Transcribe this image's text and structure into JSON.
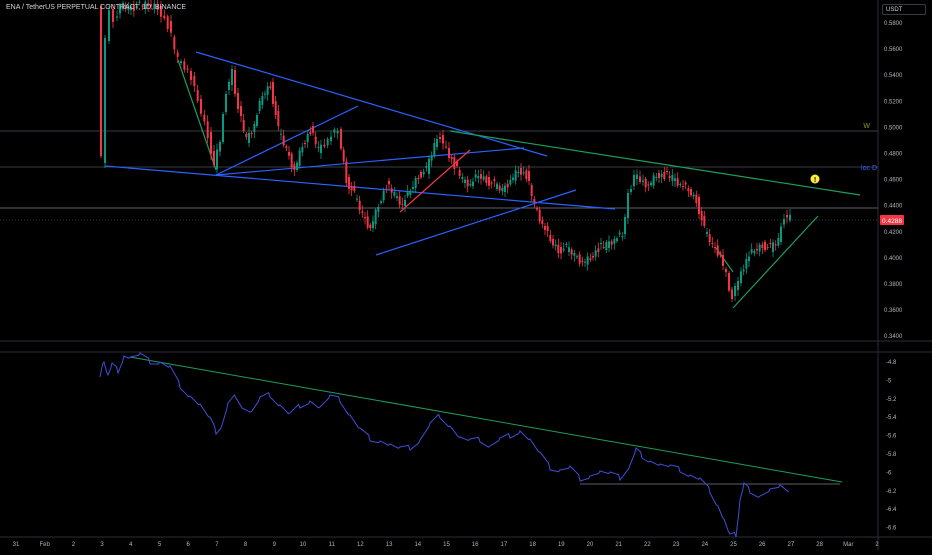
{
  "header": {
    "symbol_title": "ENA / TetherUS PERPETUAL CONTRACT, 1D, BINANCE",
    "currency_button": "USDT"
  },
  "price_axis": {
    "ticks": [
      "0.5800",
      "0.5600",
      "0.5400",
      "0.5200",
      "0.5000",
      "0.4800",
      "0.4600",
      "0.4400",
      "0.4200",
      "0.4000",
      "0.3800",
      "0.3600",
      "0.3400"
    ],
    "current_price": "0.4288",
    "label_w": "W",
    "label_loc_d": "loc D",
    "alert_icon": "!",
    "colors": {
      "price_tag": "#f23645",
      "label_w": "#8e9b3a",
      "label_loc_d": "#2962ff",
      "alert": "#ffeb3b"
    }
  },
  "indicator_axis": {
    "ticks": [
      "-4.8",
      "-5",
      "-5.2",
      "-5.4",
      "-5.6",
      "-5.8",
      "-6",
      "-6.2",
      "-6.4",
      "-6.6"
    ]
  },
  "time_axis": {
    "ticks": [
      "31",
      "Feb",
      "2",
      "3",
      "4",
      "5",
      "6",
      "7",
      "8",
      "9",
      "10",
      "11",
      "12",
      "13",
      "14",
      "15",
      "16",
      "17",
      "18",
      "19",
      "20",
      "21",
      "22",
      "23",
      "24",
      "25",
      "26",
      "27",
      "28",
      "Mar",
      "2"
    ]
  },
  "colors": {
    "up": "#089981",
    "down": "#f23645",
    "trendline": "#2962ff",
    "green_line": "#1e9e5a",
    "indicator": "#3f4fd8"
  }
}
